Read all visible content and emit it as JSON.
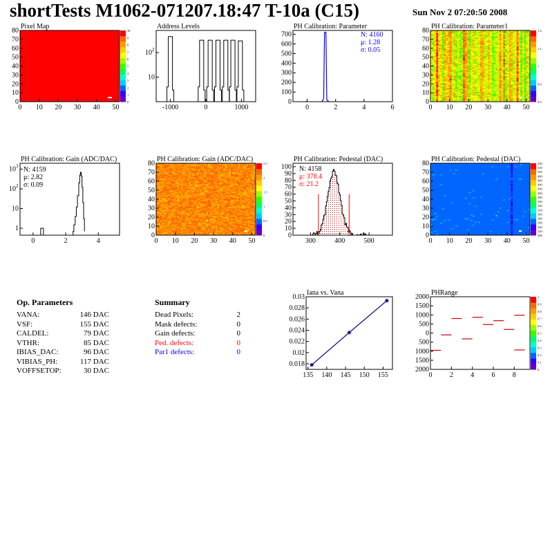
{
  "header": {
    "title": "shortTests M1062-071207.18:47 T-10a (C15)",
    "date": "Sun Nov  2 07:20:50 2008"
  },
  "palette": [
    "#6600cc",
    "#3300ff",
    "#0066ff",
    "#00ccff",
    "#00ffcc",
    "#00ff66",
    "#33ff00",
    "#99ff00",
    "#ffff00",
    "#ffcc00",
    "#ff9900",
    "#ff6600",
    "#ff0000"
  ],
  "chart_data": [
    {
      "type": "heatmap",
      "title": "Pixel Map",
      "x_ticks": [
        "0",
        "10",
        "20",
        "30",
        "40",
        "50"
      ],
      "y_ticks": [
        "0",
        "10",
        "20",
        "30",
        "40",
        "50",
        "60",
        "70",
        "80"
      ],
      "xlim": [
        0,
        52
      ],
      "ylim": [
        0,
        80
      ],
      "color_scale": [
        "0",
        "1",
        "2",
        "3",
        "4",
        "5",
        "6",
        "7",
        "8",
        "9",
        "10"
      ],
      "fill": "uniform-max"
    },
    {
      "type": "histogram",
      "title": "Address Levels",
      "yscale": "log",
      "x_ticks": [
        "-1000",
        "0",
        "1000"
      ],
      "y_ticks_log": [
        "10",
        "10^2"
      ],
      "xlim": [
        -1400,
        1400
      ],
      "peaks": [
        -1000,
        -120,
        120,
        340,
        560,
        760,
        970
      ],
      "peak_heights": [
        450,
        320,
        320,
        320,
        320,
        320,
        300
      ]
    },
    {
      "type": "histogram",
      "title": "PH Calibration: Parameter",
      "x_ticks": [
        "0",
        "2",
        "4",
        "6"
      ],
      "y_ticks": [
        "0",
        "100",
        "200",
        "300",
        "400",
        "500",
        "600",
        "700"
      ],
      "xlim": [
        -1,
        6
      ],
      "ylim": [
        0,
        740
      ],
      "stats": {
        "n": "N: 4160",
        "mean": "μ: 1.28",
        "sigma": "σ: 0.05"
      },
      "peak": 1.28,
      "peak_height": 720
    },
    {
      "type": "heatmap",
      "title": "PH Calibration: Parameter1",
      "x_ticks": [
        "0",
        "10",
        "20",
        "30",
        "40",
        "50"
      ],
      "y_ticks": [
        "0",
        "10",
        "20",
        "30",
        "40",
        "50",
        "60",
        "70",
        "80"
      ],
      "color_scale": [
        "0.6",
        "0.8",
        "1",
        "1.2",
        "1.4"
      ],
      "fill": "orange-striped"
    },
    {
      "type": "histogram",
      "title": "PH Calibration: Gain (ADC/DAC)",
      "yscale": "log",
      "x_ticks": [
        "0",
        "2",
        "4"
      ],
      "y_ticks_log": [
        "1",
        "10",
        "10^2",
        "10^3"
      ],
      "xlim": [
        -0.8,
        5.3
      ],
      "stats": {
        "n": "N: 4159",
        "mean": "μ: 2.82",
        "sigma": "σ: 0.09"
      },
      "peak": 2.9
    },
    {
      "type": "heatmap",
      "title": "PH Calibration: Gain (ADC/DAC)",
      "x_ticks": [
        "0",
        "10",
        "20",
        "30",
        "40",
        "50"
      ],
      "y_ticks": [
        "0",
        "10",
        "20",
        "30",
        "40",
        "50",
        "60",
        "70",
        "80"
      ],
      "color_scale": [
        "0",
        "0.5",
        "1",
        "1.5",
        "2",
        "2.5"
      ],
      "fill": "red-noise"
    },
    {
      "type": "histogram",
      "title": "PH Calibration: Pedestal (DAC)",
      "x_ticks": [
        "300",
        "400",
        "500"
      ],
      "y_ticks": [
        "0",
        "10",
        "20",
        "30",
        "40",
        "50",
        "60",
        "70",
        "80",
        "90",
        "100"
      ],
      "xlim": [
        240,
        580
      ],
      "ylim": [
        0,
        105
      ],
      "stats": {
        "n": "N: 4158",
        "mean": "μ: 378.4",
        "sigma": "σ: 21.2"
      },
      "mean": 378.4,
      "sigma": 21.2,
      "cut_low": 327,
      "cut_high": 432
    },
    {
      "type": "heatmap",
      "title": "PH Calibration: Pedestal (DAC)",
      "x_ticks": [
        "0",
        "10",
        "20",
        "30",
        "40",
        "50"
      ],
      "y_ticks": [
        "0",
        "10",
        "20",
        "30",
        "40",
        "50",
        "60",
        "70",
        "80"
      ],
      "color_scale": [
        "200",
        "220",
        "240",
        "260",
        "280",
        "300",
        "320",
        "340",
        "360",
        "380",
        "400",
        "420",
        "440",
        "460",
        "480",
        "500",
        "520",
        "540"
      ],
      "fill": "blue-noise"
    },
    {
      "type": "line",
      "title": "Iana vs. Vana",
      "x_ticks": [
        "135",
        "140",
        "145",
        "150",
        "155"
      ],
      "y_ticks": [
        "0.018",
        "0.02",
        "0.022",
        "0.024",
        "0.026",
        "0.028",
        "0.03"
      ],
      "xlim": [
        134.5,
        157.5
      ],
      "ylim": [
        0.017,
        0.03
      ],
      "x": [
        136,
        146,
        156
      ],
      "y": [
        0.0178,
        0.0236,
        0.0293
      ]
    },
    {
      "type": "scatter",
      "title": "PHRange",
      "x_ticks": [
        "0",
        "2",
        "4",
        "6",
        "8"
      ],
      "y_ticks": [
        "2000",
        "1500",
        "1000",
        "500",
        "0",
        "500",
        "1000",
        "1500",
        "2000"
      ],
      "xlim": [
        0,
        9.5
      ],
      "ylim": [
        -2000,
        2000
      ],
      "x": [
        0.5,
        1.5,
        2.5,
        3.5,
        4.5,
        5.5,
        6.5,
        7.5,
        8.5
      ],
      "y": [
        -950,
        -100,
        800,
        -320,
        870,
        470,
        680,
        200,
        980
      ],
      "y2": [
        null,
        null,
        null,
        null,
        null,
        null,
        null,
        null,
        -930
      ],
      "color_scale": [
        "0",
        "0.1",
        "0.2",
        "0.3",
        "0.4",
        "0.5",
        "0.6",
        "0.7",
        "0.8",
        "0.9",
        "1"
      ]
    }
  ],
  "op_parameters": {
    "heading": "Op. Parameters",
    "rows": [
      {
        "k": "VANA:",
        "v": "146 DAC"
      },
      {
        "k": "VSF:",
        "v": "155 DAC"
      },
      {
        "k": "CALDEL:",
        "v": "79 DAC"
      },
      {
        "k": "VTHR:",
        "v": "85 DAC"
      },
      {
        "k": "IBIAS_DAC:",
        "v": "96 DAC"
      },
      {
        "k": "VIBIAS_PH:",
        "v": "117 DAC"
      },
      {
        "k": "VOFFSETOP:",
        "v": "30 DAC"
      }
    ]
  },
  "summary": {
    "heading": "Summary",
    "rows": [
      {
        "k": "Dead Pixels:",
        "v": "2",
        "color": "#000000"
      },
      {
        "k": "Mask defects:",
        "v": "0",
        "color": "#000000"
      },
      {
        "k": "Gain defects:",
        "v": "0",
        "color": "#000000"
      },
      {
        "k": "Ped. defects:",
        "v": "0",
        "color": "#ff0000"
      },
      {
        "k": "Par1 defects:",
        "v": "0",
        "color": "#0000ff"
      }
    ]
  }
}
